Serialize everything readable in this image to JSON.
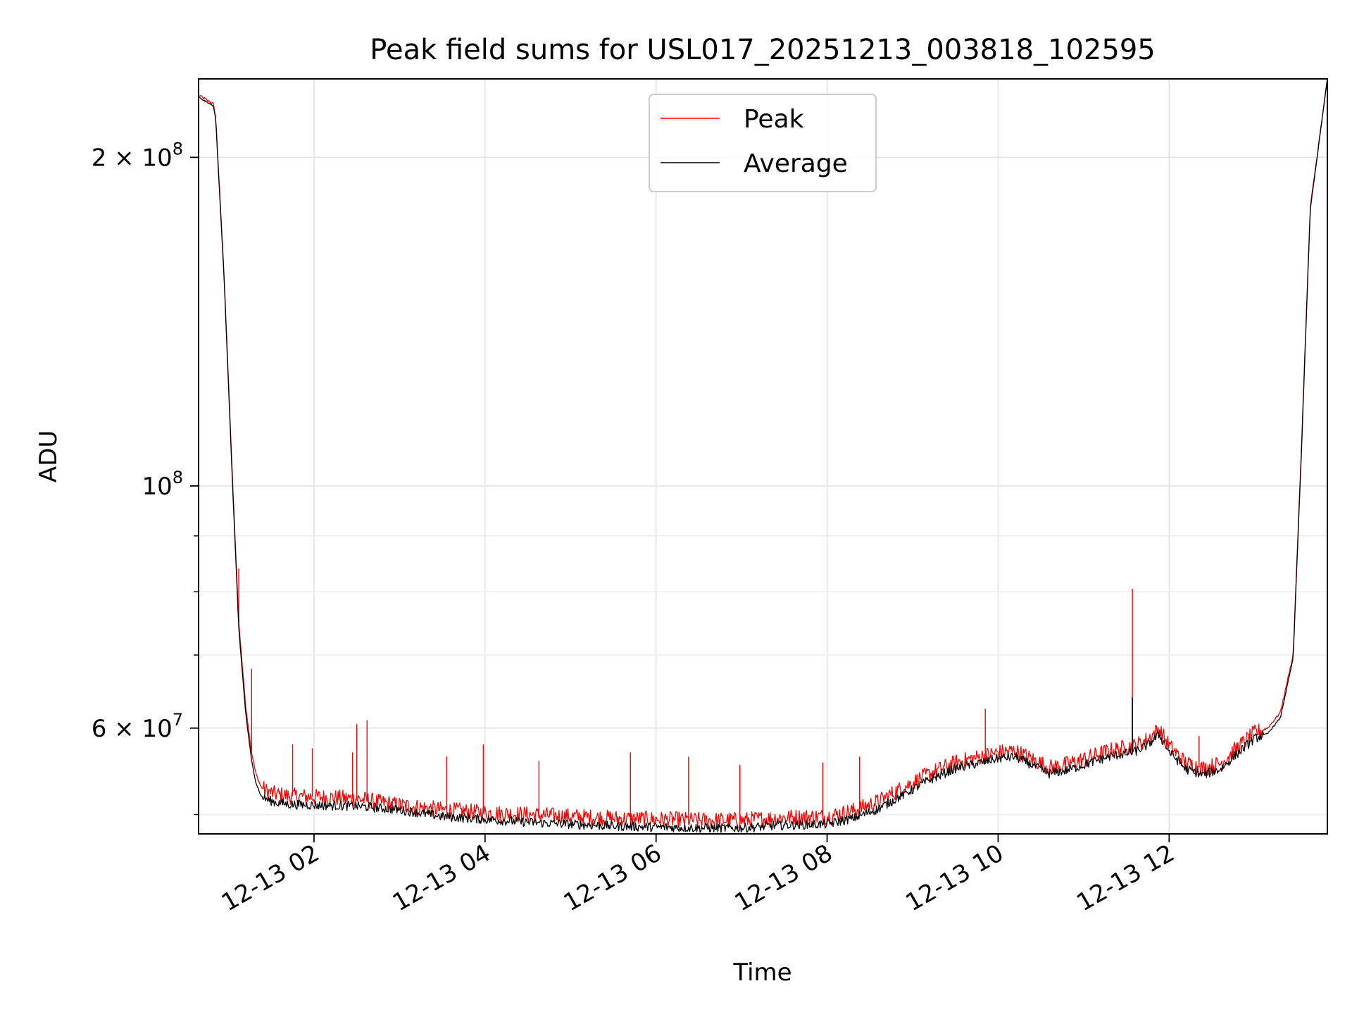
{
  "chart_data": {
    "type": "line",
    "title": "Peak field sums for USL017_20251213_003818_102595",
    "xlabel": "Time",
    "ylabel": "ADU",
    "yscale": "log",
    "ylim": [
      48000000,
      236000000
    ],
    "xlim_hours": [
      0.65,
      13.85
    ],
    "grid": true,
    "legend_position": "upper center",
    "x_ticks": [
      {
        "hour": 2,
        "label": "12-13 02"
      },
      {
        "hour": 4,
        "label": "12-13 04"
      },
      {
        "hour": 6,
        "label": "12-13 06"
      },
      {
        "hour": 8,
        "label": "12-13 08"
      },
      {
        "hour": 10,
        "label": "12-13 10"
      },
      {
        "hour": 12,
        "label": "12-13 12"
      }
    ],
    "y_major_ticks": [
      {
        "value": 60000000,
        "mantissa": "6",
        "exponent": "7"
      },
      {
        "value": 100000000,
        "mantissa": "",
        "exponent": "8"
      },
      {
        "value": 200000000,
        "mantissa": "2",
        "exponent": "8"
      }
    ],
    "y_minor_ticks": [
      50000000,
      70000000,
      80000000,
      90000000
    ],
    "series": [
      {
        "name": "Peak",
        "color": "#ff0000",
        "x_hours": [
          0.65,
          0.82,
          0.85,
          0.95,
          1.05,
          1.12,
          1.2,
          1.27,
          1.32,
          1.38,
          1.45,
          1.55,
          1.7,
          2.0,
          2.5,
          3.0,
          3.5,
          4.0,
          4.5,
          5.0,
          5.5,
          6.0,
          6.5,
          7.0,
          7.5,
          8.0,
          8.3,
          8.6,
          8.9,
          9.2,
          9.5,
          9.8,
          10.0,
          10.2,
          10.4,
          10.6,
          10.8,
          11.0,
          11.3,
          11.6,
          11.75,
          11.88,
          12.0,
          12.2,
          12.4,
          12.6,
          12.8,
          13.0,
          13.15,
          13.3,
          13.45,
          13.55,
          13.65,
          13.85
        ],
        "values": [
          228000000,
          224000000,
          218000000,
          155000000,
          100000000,
          75000000,
          63000000,
          57000000,
          54500000,
          53000000,
          52500000,
          52200000,
          52000000,
          51900000,
          51700000,
          51000000,
          50500000,
          50200000,
          50000000,
          49800000,
          49600000,
          49500000,
          49400000,
          49400000,
          49700000,
          49800000,
          50400000,
          51400000,
          53000000,
          54500000,
          55800000,
          56500000,
          57000000,
          57200000,
          56200000,
          55200000,
          55600000,
          56200000,
          57200000,
          57800000,
          58600000,
          59900000,
          57800000,
          55700000,
          55100000,
          55700000,
          57600000,
          59400000,
          60000000,
          62000000,
          70000000,
          110000000,
          180000000,
          236000000
        ]
      },
      {
        "name": "Average",
        "color": "#000000",
        "x_hours": [
          0.65,
          0.82,
          0.85,
          0.95,
          1.05,
          1.12,
          1.2,
          1.27,
          1.32,
          1.38,
          1.45,
          1.55,
          1.7,
          2.0,
          2.5,
          3.0,
          3.5,
          4.0,
          4.5,
          5.0,
          5.5,
          6.0,
          6.5,
          7.0,
          7.5,
          8.0,
          8.3,
          8.6,
          8.9,
          9.2,
          9.5,
          9.8,
          10.0,
          10.2,
          10.4,
          10.6,
          10.8,
          11.0,
          11.3,
          11.6,
          11.75,
          11.88,
          12.0,
          12.2,
          12.4,
          12.6,
          12.8,
          13.0,
          13.15,
          13.3,
          13.45,
          13.55,
          13.65,
          13.85
        ],
        "values": [
          227000000,
          223000000,
          217000000,
          154000000,
          99000000,
          74000000,
          62000000,
          56000000,
          53500000,
          52000000,
          51600000,
          51300000,
          51100000,
          51000000,
          50900000,
          50500000,
          49800000,
          49500000,
          49200000,
          49000000,
          48800000,
          48700000,
          48600000,
          48600000,
          48900000,
          49000000,
          49600000,
          50600000,
          52200000,
          53800000,
          55100000,
          55800000,
          56300000,
          56500000,
          55500000,
          54500000,
          54900000,
          55500000,
          56500000,
          57100000,
          57900000,
          59200000,
          57100000,
          55000000,
          54400000,
          55000000,
          56900000,
          58700000,
          59300000,
          61300000,
          69500000,
          109000000,
          179000000,
          236000000
        ]
      }
    ],
    "peak_spikes": [
      {
        "hour": 1.12,
        "value": 84000000
      },
      {
        "hour": 1.27,
        "value": 68000000
      },
      {
        "hour": 1.75,
        "value": 58000000
      },
      {
        "hour": 1.98,
        "value": 57500000
      },
      {
        "hour": 2.45,
        "value": 57000000
      },
      {
        "hour": 2.5,
        "value": 60500000
      },
      {
        "hour": 2.62,
        "value": 61000000
      },
      {
        "hour": 3.55,
        "value": 56500000
      },
      {
        "hour": 3.98,
        "value": 58000000
      },
      {
        "hour": 4.63,
        "value": 56000000
      },
      {
        "hour": 5.7,
        "value": 57000000
      },
      {
        "hour": 6.38,
        "value": 56500000
      },
      {
        "hour": 6.98,
        "value": 55500000
      },
      {
        "hour": 7.95,
        "value": 55800000
      },
      {
        "hour": 8.38,
        "value": 56500000
      },
      {
        "hour": 9.85,
        "value": 62500000
      },
      {
        "hour": 11.57,
        "value": 80500000
      },
      {
        "hour": 12.35,
        "value": 59000000
      }
    ],
    "average_spikes": [
      {
        "hour": 11.57,
        "value": 64000000
      }
    ]
  }
}
